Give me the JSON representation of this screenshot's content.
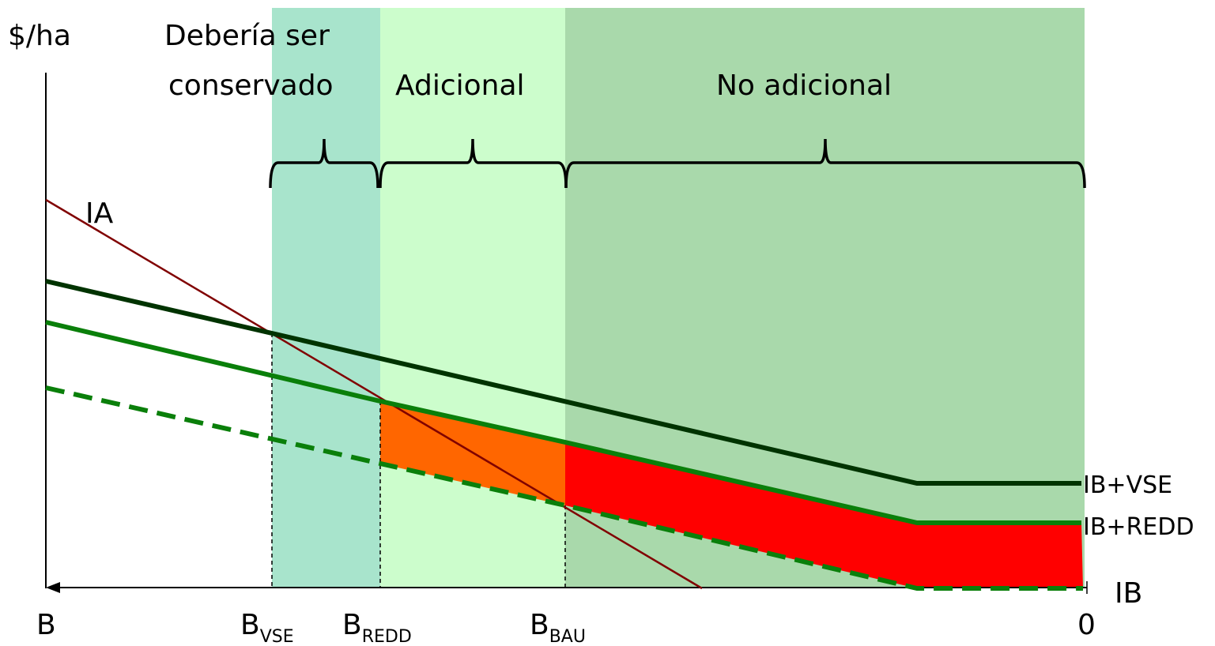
{
  "y_axis_label": "$/ha",
  "regions": {
    "should_conserve": "Debería ser conservado",
    "should_conserve_line1": "Debería ser",
    "should_conserve_line2": "conservado",
    "additional": "Adicional",
    "not_additional": "No adicional"
  },
  "curves": {
    "ia": "IA",
    "ib_vse": "IB+VSE",
    "ib_redd": "IB+REDD",
    "ib": "IB"
  },
  "x_axis": {
    "left_end": "B",
    "right_end": "0",
    "b_vse_main": "B",
    "b_vse_sub": "VSE",
    "b_redd_main": "B",
    "b_redd_sub": "REDD",
    "b_bau_main": "B",
    "b_bau_sub": "BAU"
  },
  "colors": {
    "region_should_conserve": "#a8e4cc",
    "region_additional": "#ccfdcc",
    "region_not_additional": "#a9d9ab",
    "fill_orange": "#ff6600",
    "fill_red": "#ff0000",
    "line_ib_vse": "#003300",
    "line_ib_redd": "#0a7f0a",
    "line_ia": "#800000"
  }
}
